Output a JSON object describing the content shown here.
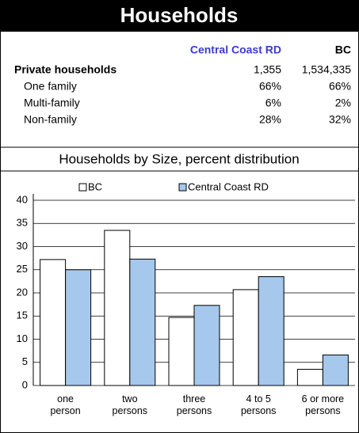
{
  "header": {
    "title": "Households"
  },
  "table": {
    "columns": [
      "Central Coast RD",
      "BC"
    ],
    "rows": [
      [
        "Private households",
        "1,355",
        "1,534,335"
      ],
      [
        "One family",
        "66%",
        "66%"
      ],
      [
        "Multi-family",
        "6%",
        "2%"
      ],
      [
        "Non-family",
        "28%",
        "32%"
      ]
    ]
  },
  "chart_data": {
    "type": "bar",
    "title": "Households by Size, percent distribution",
    "categories": [
      "one person",
      "two persons",
      "three persons",
      "4 to 5 persons",
      "6 or more persons"
    ],
    "series": [
      {
        "name": "BC",
        "color": "#ffffff",
        "values": [
          27.2,
          33.5,
          14.7,
          20.7,
          3.5
        ]
      },
      {
        "name": "Central Coast RD",
        "color": "#a6c8ec",
        "values": [
          25.0,
          27.3,
          17.3,
          23.5,
          6.6
        ]
      }
    ],
    "ylim": [
      0,
      40
    ],
    "yticks": [
      0,
      5,
      10,
      15,
      20,
      25,
      30,
      35,
      40
    ],
    "grid": true,
    "legend": "top"
  }
}
